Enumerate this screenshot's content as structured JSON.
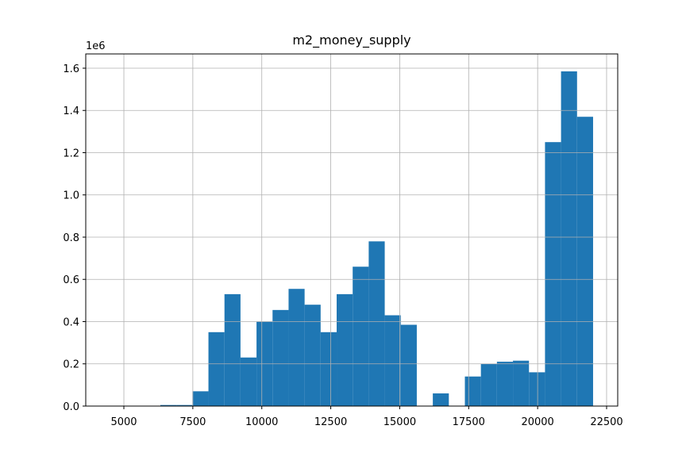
{
  "chart_data": {
    "type": "histogram",
    "title": "m2_money_supply",
    "y_offset_label": "1e6",
    "bins": [
      4580,
      5161,
      5742,
      6323,
      6904,
      7485,
      8066,
      8647,
      9228,
      9809,
      10390,
      10971,
      11552,
      12133,
      12714,
      13295,
      13876,
      14457,
      15038,
      15619,
      16200,
      16781,
      17362,
      17943,
      18524,
      19105,
      19686,
      20267,
      20848,
      21429,
      22010
    ],
    "counts": [
      0,
      0,
      0,
      5000,
      5000,
      70000,
      350000,
      530000,
      230000,
      400000,
      455000,
      555000,
      480000,
      350000,
      530000,
      660000,
      780000,
      430000,
      385000,
      0,
      60000,
      0,
      140000,
      200000,
      210000,
      215000,
      160000,
      1250000,
      1585000,
      1370000
    ],
    "color": "#1f77b4",
    "xlim": [
      3618,
      22903
    ],
    "xticks": [
      5000,
      7500,
      10000,
      12500,
      15000,
      17500,
      20000,
      22500
    ],
    "ylim": [
      0,
      1667600
    ],
    "yticks": [
      {
        "value": 0,
        "label": "0.0"
      },
      {
        "value": 200000,
        "label": "0.2"
      },
      {
        "value": 400000,
        "label": "0.4"
      },
      {
        "value": 600000,
        "label": "0.6"
      },
      {
        "value": 800000,
        "label": "0.8"
      },
      {
        "value": 1000000,
        "label": "1.0"
      },
      {
        "value": 1200000,
        "label": "1.2"
      },
      {
        "value": 1400000,
        "label": "1.4"
      },
      {
        "value": 1600000,
        "label": "1.6"
      }
    ],
    "grid": true
  }
}
